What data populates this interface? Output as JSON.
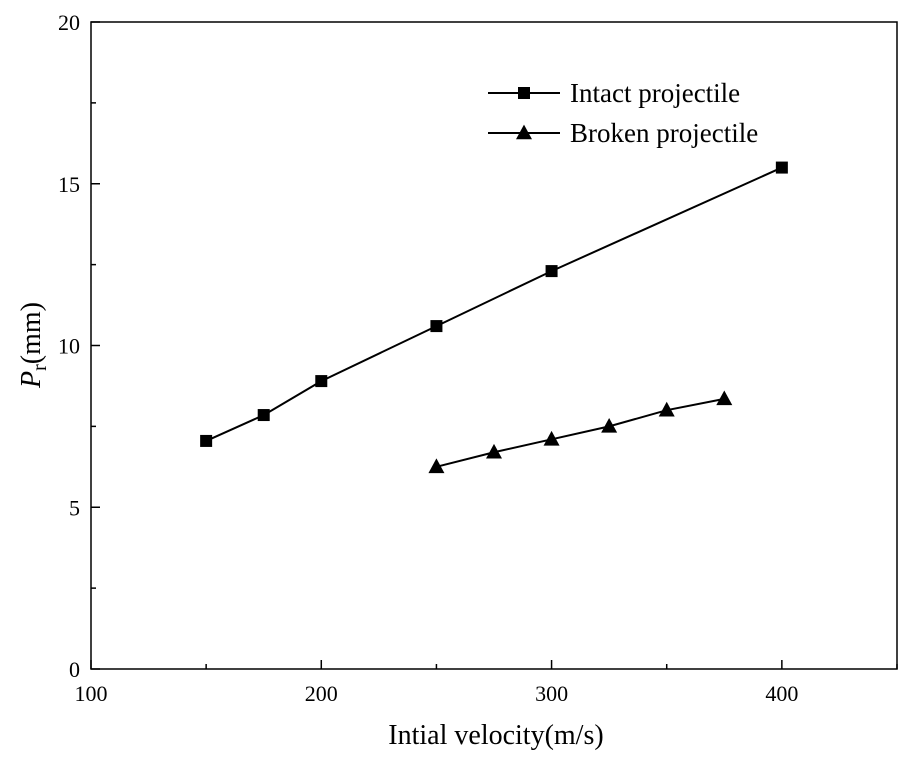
{
  "chart_data": {
    "type": "line",
    "title": "",
    "xlabel": "Intial velocity(m/s)",
    "ylabel": {
      "main": "P",
      "subscript": "r",
      "suffix": "(mm)"
    },
    "xlim": [
      100,
      450
    ],
    "ylim": [
      0,
      20
    ],
    "xticks": [
      100,
      200,
      300,
      400
    ],
    "yticks": [
      0,
      5,
      10,
      15,
      20
    ],
    "legend_position": "top-right",
    "grid": false,
    "series": [
      {
        "name": "Intact projectile",
        "marker": "square",
        "x": [
          150,
          175,
          200,
          250,
          300,
          400
        ],
        "y": [
          7.05,
          7.85,
          8.9,
          10.6,
          12.3,
          15.5
        ]
      },
      {
        "name": "Broken projectile",
        "marker": "triangle",
        "x": [
          250,
          275,
          300,
          325,
          350,
          375
        ],
        "y": [
          6.25,
          6.7,
          7.1,
          7.5,
          8.0,
          8.35
        ]
      }
    ]
  }
}
